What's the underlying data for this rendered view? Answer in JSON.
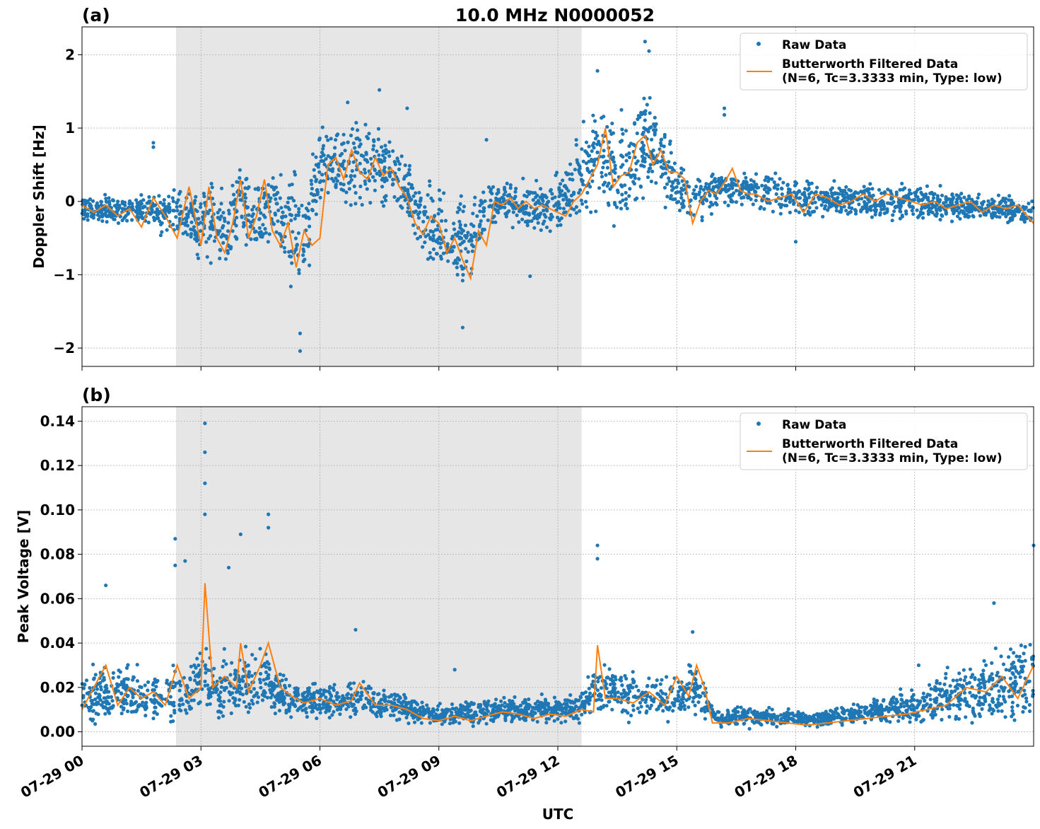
{
  "figure": {
    "title": "10.0 MHz N0000052",
    "xlabel": "UTC",
    "x_tick_labels": [
      "07-29 00",
      "07-29 03",
      "07-29 06",
      "07-29 09",
      "07-29 12",
      "07-29 15",
      "07-29 18",
      "07-29 21"
    ]
  },
  "chart_data": [
    {
      "type": "scatter",
      "panel_label": "(a)",
      "title": "10.0 MHz N0000052",
      "ylabel": "Doppler Shift [Hz]",
      "xlabel": "",
      "x_unit": "hours UTC 2024-07-29",
      "xlim": [
        0,
        24
      ],
      "ylim": [
        -2.25,
        2.38
      ],
      "yticks": [
        -2,
        -1,
        0,
        1,
        2
      ],
      "y_tick_labels": [
        "−2",
        "−1",
        "0",
        "1",
        "2"
      ],
      "grid": true,
      "legend_position": "upper right",
      "shaded_interval": {
        "x": [
          2.37,
          12.6
        ],
        "color": "#e6e6e6"
      },
      "series": [
        {
          "name": "Raw Data",
          "style": "dots",
          "color": "#1f77b4",
          "x": [
            0,
            0.5,
            1,
            1.5,
            2,
            2.4,
            2.8,
            3.1,
            3.4,
            3.7,
            4,
            4.3,
            4.6,
            5,
            5.3,
            5.6,
            6,
            6.3,
            6.6,
            7,
            7.4,
            7.8,
            8.2,
            8.6,
            9,
            9.4,
            9.8,
            10.2,
            10.6,
            11,
            11.4,
            11.8,
            12.2,
            12.6,
            13,
            13.4,
            13.8,
            14.2,
            14.6,
            15,
            15.4,
            16,
            16.5,
            17,
            17.5,
            18,
            19,
            20,
            21,
            22,
            23,
            24
          ],
          "y_center": [
            -0.1,
            -0.1,
            -0.15,
            -0.1,
            -0.2,
            -0.1,
            -0.3,
            -0.2,
            -0.35,
            -0.4,
            0.0,
            -0.25,
            -0.1,
            -0.2,
            -0.35,
            -0.5,
            0.5,
            0.4,
            0.45,
            0.55,
            0.5,
            0.4,
            0.1,
            -0.3,
            -0.4,
            -0.5,
            -0.6,
            -0.05,
            0.0,
            -0.05,
            -0.1,
            -0.1,
            0.0,
            0.4,
            0.7,
            0.4,
            0.5,
            0.8,
            0.6,
            0.2,
            -0.05,
            0.2,
            0.15,
            0.15,
            0.1,
            0.05,
            0.05,
            0.0,
            0.0,
            -0.05,
            -0.1,
            -0.15
          ],
          "y_halfwidth": [
            0.2,
            0.2,
            0.25,
            0.25,
            0.3,
            0.3,
            0.5,
            0.6,
            0.7,
            0.6,
            0.5,
            0.6,
            0.6,
            0.7,
            0.9,
            0.8,
            0.6,
            0.5,
            0.6,
            0.7,
            0.6,
            0.6,
            0.4,
            0.6,
            0.7,
            0.7,
            0.7,
            0.3,
            0.3,
            0.35,
            0.4,
            0.4,
            0.5,
            0.6,
            0.8,
            0.8,
            0.9,
            0.8,
            0.6,
            0.4,
            0.35,
            0.3,
            0.3,
            0.25,
            0.3,
            0.3,
            0.25,
            0.25,
            0.25,
            0.25,
            0.2,
            0.2
          ],
          "outliers": [
            {
              "x": 1.8,
              "y": 0.8
            },
            {
              "x": 1.8,
              "y": 0.74
            },
            {
              "x": 5.5,
              "y": -2.04
            },
            {
              "x": 5.5,
              "y": -1.8
            },
            {
              "x": 6.7,
              "y": 1.35
            },
            {
              "x": 7.5,
              "y": 1.52
            },
            {
              "x": 8.2,
              "y": 1.27
            },
            {
              "x": 9.6,
              "y": -1.72
            },
            {
              "x": 10.2,
              "y": 0.84
            },
            {
              "x": 11.3,
              "y": -1.02
            },
            {
              "x": 13.0,
              "y": 1.78
            },
            {
              "x": 14.2,
              "y": 2.18
            },
            {
              "x": 14.3,
              "y": 2.05
            },
            {
              "x": 16.2,
              "y": 1.27
            },
            {
              "x": 16.2,
              "y": 1.18
            },
            {
              "x": 18.0,
              "y": -0.55
            }
          ]
        },
        {
          "name": "Butterworth Filtered Data\n(N=6, Tc=3.3333 min, Type: low)",
          "style": "line",
          "color": "#ff7f0e",
          "x": [
            0,
            0.3,
            0.6,
            0.9,
            1.2,
            1.5,
            1.8,
            2.1,
            2.4,
            2.7,
            3.0,
            3.2,
            3.4,
            3.6,
            3.8,
            4.0,
            4.2,
            4.4,
            4.6,
            4.8,
            5.0,
            5.2,
            5.4,
            5.6,
            5.8,
            6.0,
            6.2,
            6.4,
            6.6,
            6.8,
            7.0,
            7.2,
            7.4,
            7.6,
            7.8,
            8.0,
            8.2,
            8.4,
            8.6,
            8.8,
            9.0,
            9.2,
            9.4,
            9.6,
            9.8,
            10.0,
            10.2,
            10.4,
            10.6,
            10.8,
            11.0,
            11.2,
            11.4,
            11.6,
            11.8,
            12.0,
            12.2,
            12.4,
            12.6,
            12.8,
            13.0,
            13.2,
            13.4,
            13.6,
            13.8,
            14.0,
            14.2,
            14.4,
            14.6,
            14.8,
            15.0,
            15.2,
            15.4,
            15.6,
            15.8,
            16.0,
            16.2,
            16.4,
            16.6,
            16.8,
            17.0,
            17.3,
            17.6,
            17.9,
            18.2,
            18.5,
            18.8,
            19.1,
            19.4,
            19.7,
            20.0,
            20.3,
            20.6,
            20.9,
            21.2,
            21.5,
            21.8,
            22.1,
            22.4,
            22.7,
            23.0,
            23.3,
            23.6,
            24.0
          ],
          "y": [
            -0.05,
            -0.15,
            -0.05,
            -0.2,
            -0.1,
            -0.35,
            0.05,
            -0.2,
            -0.5,
            0.2,
            -0.6,
            0.2,
            -0.5,
            -0.7,
            -0.3,
            0.3,
            -0.5,
            -0.2,
            0.3,
            -0.4,
            -0.6,
            -0.3,
            -0.9,
            -0.4,
            -0.6,
            -0.5,
            0.5,
            0.6,
            0.3,
            0.7,
            0.4,
            0.3,
            0.6,
            0.35,
            0.45,
            0.2,
            0.05,
            -0.3,
            -0.45,
            -0.2,
            -0.3,
            -0.7,
            -0.5,
            -0.8,
            -1.05,
            -0.4,
            -0.6,
            0.0,
            -0.05,
            0.05,
            -0.1,
            0.0,
            -0.1,
            -0.05,
            -0.1,
            -0.15,
            -0.2,
            0.0,
            0.1,
            0.3,
            0.5,
            1.0,
            0.2,
            0.35,
            0.4,
            0.8,
            0.9,
            0.5,
            0.7,
            0.4,
            0.4,
            0.3,
            -0.3,
            0.0,
            0.15,
            0.1,
            0.25,
            0.45,
            0.15,
            0.1,
            0.1,
            0.0,
            0.05,
            0.1,
            -0.15,
            0.1,
            0.05,
            -0.05,
            0.0,
            0.1,
            0.0,
            0.1,
            0.05,
            0.0,
            -0.05,
            0.0,
            -0.1,
            -0.05,
            0.0,
            -0.15,
            -0.05,
            -0.1,
            -0.05,
            -0.3
          ]
        }
      ]
    },
    {
      "type": "scatter",
      "panel_label": "(b)",
      "title": "",
      "ylabel": "Peak Voltage [V]",
      "xlabel": "UTC",
      "x_unit": "hours UTC 2024-07-29",
      "xlim": [
        0,
        24
      ],
      "ylim": [
        -0.0065,
        0.1465
      ],
      "yticks": [
        0.0,
        0.02,
        0.04,
        0.06,
        0.08,
        0.1,
        0.12,
        0.14
      ],
      "y_tick_labels": [
        "0.00",
        "0.02",
        "0.04",
        "0.06",
        "0.08",
        "0.10",
        "0.12",
        "0.14"
      ],
      "grid": true,
      "legend_position": "upper right",
      "shaded_interval": {
        "x": [
          2.37,
          12.6
        ],
        "color": "#e6e6e6"
      },
      "series": [
        {
          "name": "Raw Data",
          "style": "dots",
          "color": "#1f77b4",
          "x": [
            0,
            0.5,
            1,
            1.5,
            2,
            2.4,
            2.8,
            3.1,
            3.4,
            3.7,
            4,
            4.3,
            4.6,
            5,
            5.5,
            6,
            6.5,
            7,
            7.5,
            8,
            8.5,
            9,
            9.5,
            10,
            10.5,
            11,
            11.5,
            12,
            12.5,
            13,
            13.5,
            14,
            14.5,
            15,
            15.5,
            16,
            16.5,
            17,
            17.5,
            18,
            18.5,
            19,
            19.5,
            20,
            20.5,
            21,
            21.5,
            22,
            22.5,
            23,
            23.5,
            24
          ],
          "y_center": [
            0.015,
            0.018,
            0.017,
            0.016,
            0.015,
            0.017,
            0.018,
            0.025,
            0.018,
            0.02,
            0.022,
            0.02,
            0.025,
            0.016,
            0.014,
            0.014,
            0.013,
            0.016,
            0.013,
            0.012,
            0.009,
            0.008,
            0.009,
            0.009,
            0.01,
            0.01,
            0.01,
            0.01,
            0.011,
            0.02,
            0.017,
            0.016,
            0.016,
            0.015,
            0.02,
            0.006,
            0.007,
            0.007,
            0.006,
            0.006,
            0.006,
            0.007,
            0.008,
            0.009,
            0.011,
            0.012,
            0.014,
            0.016,
            0.018,
            0.02,
            0.022,
            0.025
          ],
          "y_halfwidth": [
            0.012,
            0.014,
            0.013,
            0.013,
            0.012,
            0.014,
            0.014,
            0.02,
            0.015,
            0.016,
            0.018,
            0.015,
            0.018,
            0.011,
            0.009,
            0.009,
            0.008,
            0.01,
            0.008,
            0.007,
            0.005,
            0.005,
            0.006,
            0.006,
            0.006,
            0.006,
            0.006,
            0.006,
            0.007,
            0.013,
            0.011,
            0.011,
            0.011,
            0.011,
            0.014,
            0.004,
            0.005,
            0.005,
            0.004,
            0.004,
            0.004,
            0.005,
            0.005,
            0.006,
            0.008,
            0.009,
            0.011,
            0.014,
            0.016,
            0.018,
            0.02,
            0.022
          ],
          "outliers": [
            {
              "x": 0.6,
              "y": 0.066
            },
            {
              "x": 2.35,
              "y": 0.087
            },
            {
              "x": 2.35,
              "y": 0.075
            },
            {
              "x": 2.6,
              "y": 0.077
            },
            {
              "x": 3.1,
              "y": 0.139
            },
            {
              "x": 3.1,
              "y": 0.126
            },
            {
              "x": 3.1,
              "y": 0.112
            },
            {
              "x": 3.1,
              "y": 0.098
            },
            {
              "x": 3.7,
              "y": 0.074
            },
            {
              "x": 4.0,
              "y": 0.089
            },
            {
              "x": 4.7,
              "y": 0.098
            },
            {
              "x": 4.7,
              "y": 0.092
            },
            {
              "x": 6.9,
              "y": 0.046
            },
            {
              "x": 9.4,
              "y": 0.028
            },
            {
              "x": 13.0,
              "y": 0.084
            },
            {
              "x": 13.0,
              "y": 0.078
            },
            {
              "x": 15.4,
              "y": 0.045
            },
            {
              "x": 21.1,
              "y": 0.03
            },
            {
              "x": 23.0,
              "y": 0.058
            },
            {
              "x": 24.0,
              "y": 0.084
            }
          ]
        },
        {
          "name": "Butterworth Filtered Data\n(N=6, Tc=3.3333 min, Type: low)",
          "style": "line",
          "color": "#ff7f0e",
          "x": [
            0,
            0.3,
            0.6,
            0.9,
            1.2,
            1.5,
            1.8,
            2.1,
            2.4,
            2.7,
            3.0,
            3.1,
            3.3,
            3.6,
            3.9,
            4.0,
            4.2,
            4.5,
            4.7,
            5.0,
            5.3,
            5.6,
            6.0,
            6.4,
            6.8,
            7.0,
            7.4,
            7.8,
            8.2,
            8.6,
            9.0,
            9.4,
            9.8,
            10.2,
            10.6,
            11.0,
            11.4,
            11.8,
            12.2,
            12.6,
            12.9,
            13.0,
            13.2,
            13.5,
            13.9,
            14.3,
            14.7,
            15.0,
            15.3,
            15.5,
            15.7,
            15.9,
            16.3,
            16.8,
            17.3,
            17.8,
            18.3,
            18.8,
            19.3,
            19.8,
            20.3,
            20.8,
            21.3,
            21.8,
            22.3,
            22.8,
            23.2,
            23.6,
            24.0
          ],
          "y": [
            0.01,
            0.02,
            0.03,
            0.012,
            0.02,
            0.015,
            0.018,
            0.012,
            0.03,
            0.015,
            0.02,
            0.067,
            0.02,
            0.025,
            0.02,
            0.04,
            0.018,
            0.03,
            0.04,
            0.02,
            0.016,
            0.013,
            0.015,
            0.012,
            0.014,
            0.022,
            0.012,
            0.012,
            0.01,
            0.006,
            0.005,
            0.007,
            0.005,
            0.007,
            0.009,
            0.008,
            0.006,
            0.008,
            0.007,
            0.01,
            0.009,
            0.039,
            0.015,
            0.015,
            0.013,
            0.018,
            0.012,
            0.025,
            0.016,
            0.03,
            0.02,
            0.004,
            0.004,
            0.006,
            0.005,
            0.004,
            0.003,
            0.004,
            0.005,
            0.006,
            0.007,
            0.008,
            0.01,
            0.012,
            0.02,
            0.018,
            0.025,
            0.015,
            0.03
          ]
        }
      ]
    }
  ],
  "colors": {
    "raw": "#1f77b4",
    "filtered": "#ff7f0e",
    "shade": "#e6e6e6",
    "grid": "#b0b0b0"
  }
}
